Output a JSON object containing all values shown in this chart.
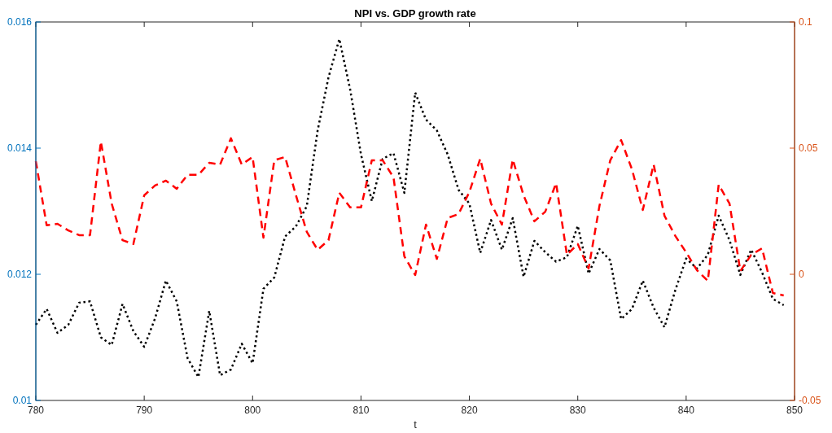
{
  "chart_data": {
    "type": "line",
    "title": "NPI vs. GDP growth rate",
    "xlabel": "t",
    "x": [
      780,
      781,
      782,
      783,
      784,
      785,
      786,
      787,
      788,
      789,
      790,
      791,
      792,
      793,
      794,
      795,
      796,
      797,
      798,
      799,
      800,
      801,
      802,
      803,
      804,
      805,
      806,
      807,
      808,
      809,
      810,
      811,
      812,
      813,
      814,
      815,
      816,
      817,
      818,
      819,
      820,
      821,
      822,
      823,
      824,
      825,
      826,
      827,
      828,
      829,
      830,
      831,
      832,
      833,
      834,
      835,
      836,
      837,
      838,
      839,
      840,
      841,
      842,
      843,
      844,
      845,
      846,
      847,
      848,
      849
    ],
    "xlim": [
      780,
      850
    ],
    "xticks": [
      780,
      790,
      800,
      810,
      820,
      830,
      840,
      850
    ],
    "ylim": [
      0.01,
      0.016
    ],
    "yticks": [
      0.01,
      0.012,
      0.014,
      0.016
    ],
    "y2lim": [
      -0.05,
      0.1
    ],
    "y2ticks": [
      -0.05,
      0,
      0.05,
      0.1
    ],
    "grid": false,
    "marker": "none",
    "series": [
      {
        "color": "#000000",
        "line_style": "dotted",
        "values": [
          0.0112,
          0.01145,
          0.01107,
          0.0112,
          0.01155,
          0.01157,
          0.011,
          0.01088,
          0.01153,
          0.0111,
          0.01085,
          0.0113,
          0.0119,
          0.01157,
          0.01067,
          0.01037,
          0.01142,
          0.0104,
          0.01049,
          0.0109,
          0.01059,
          0.01177,
          0.01195,
          0.0126,
          0.01276,
          0.01308,
          0.01428,
          0.01512,
          0.01573,
          0.01493,
          0.0139,
          0.01316,
          0.01383,
          0.01392,
          0.01329,
          0.01488,
          0.01445,
          0.01428,
          0.0139,
          0.01334,
          0.01312,
          0.01234,
          0.01286,
          0.01239,
          0.01289,
          0.01196,
          0.01253,
          0.01235,
          0.0122,
          0.01227,
          0.01277,
          0.01201,
          0.0124,
          0.01222,
          0.01129,
          0.01145,
          0.0119,
          0.01147,
          0.01116,
          0.01175,
          0.01225,
          0.01209,
          0.01231,
          0.01293,
          0.01254,
          0.01199,
          0.01239,
          0.01203,
          0.01161,
          0.01151
        ]
      },
      {
        "color": "#ff0000",
        "line_style": "dashed",
        "axis": "y2",
        "values": [
          0.0448,
          0.0194,
          0.02,
          0.0174,
          0.0155,
          0.0155,
          0.0526,
          0.028,
          0.0135,
          0.012,
          0.0313,
          0.0352,
          0.0371,
          0.0339,
          0.0394,
          0.0394,
          0.0442,
          0.0435,
          0.0539,
          0.0435,
          0.0465,
          0.0145,
          0.0452,
          0.0465,
          0.0313,
          0.0168,
          0.0097,
          0.0135,
          0.0323,
          0.0265,
          0.0265,
          0.0452,
          0.0452,
          0.0384,
          0.0071,
          -0.0003,
          0.0197,
          0.0061,
          0.0223,
          0.0239,
          0.0326,
          0.0458,
          0.028,
          0.0197,
          0.0455,
          0.0313,
          0.021,
          0.0248,
          0.0361,
          0.0077,
          0.012,
          0.0023,
          0.0271,
          0.0452,
          0.0532,
          0.0416,
          0.0255,
          0.0435,
          0.0232,
          0.0152,
          0.0087,
          0.0016,
          -0.0026,
          0.0355,
          0.028,
          0.0013,
          0.0077,
          0.0103,
          -0.0074,
          -0.0084
        ]
      }
    ]
  }
}
